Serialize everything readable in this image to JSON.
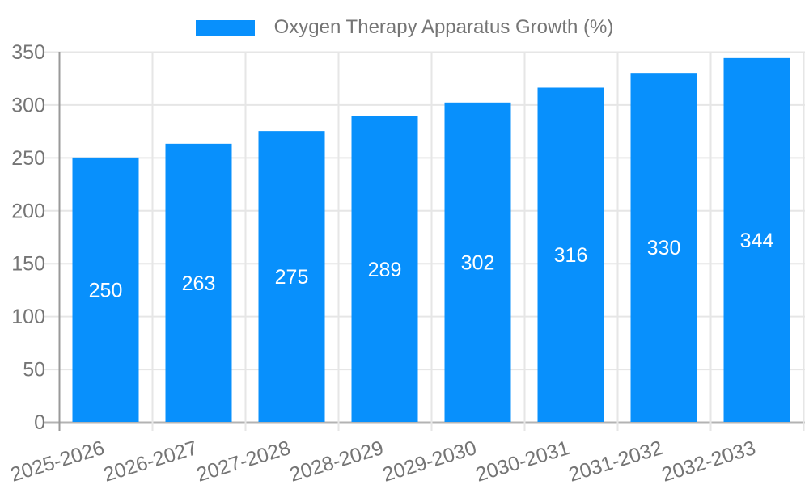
{
  "chart_data": {
    "type": "bar",
    "title": "Oxygen Therapy Apparatus Growth (%)",
    "categories": [
      "2025-2026",
      "2026-2027",
      "2027-2028",
      "2028-2029",
      "2029-2030",
      "2030-2031",
      "2031-2032",
      "2032-2033"
    ],
    "values": [
      250,
      263,
      275,
      289,
      302,
      316,
      330,
      344
    ],
    "xlabel": "",
    "ylabel": "",
    "ylim": [
      0,
      350
    ],
    "yticks": [
      0,
      50,
      100,
      150,
      200,
      250,
      300,
      350
    ],
    "grid": true,
    "legend_position": "top",
    "bar_color": "#0890fc",
    "bar_label_color": "#ffffff",
    "axis_text_color": "#757575",
    "grid_color": "#e6e6e6",
    "baseline_color": "#b3b3b3",
    "axis_line_color": "#999999"
  }
}
